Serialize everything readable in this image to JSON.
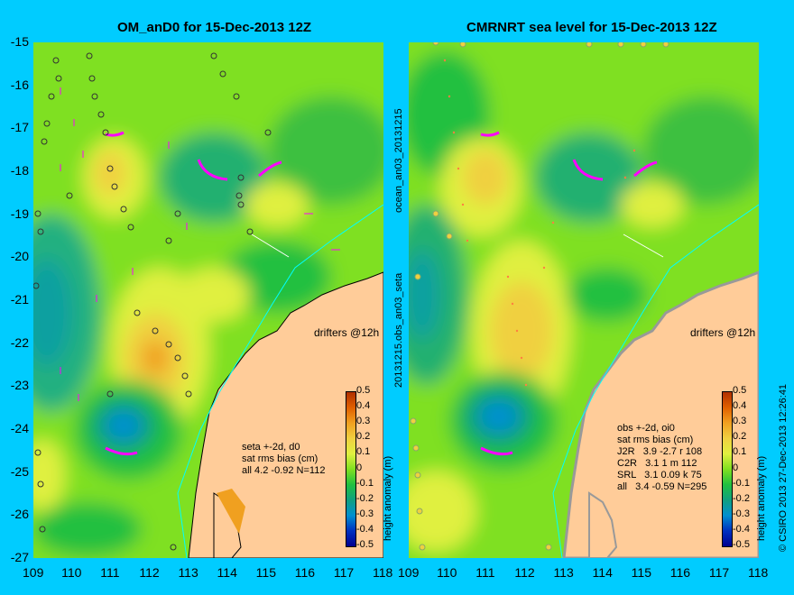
{
  "left_panel": {
    "title": "OM_anD0 for 15-Dec-2013 12Z",
    "drifters_label": "drifters @12h",
    "stats": [
      "seta +-2d, d0",
      "sat rms bias (cm)",
      "all 4.2 -0.92 N=112"
    ]
  },
  "right_panel": {
    "title": "CMRNRT sea level  for 15-Dec-2013 12Z",
    "drifters_label": "drifters @12h",
    "stats": [
      "obs +-2d, oi0",
      "sat rms bias (cm)",
      "J2R   3.9 -2.7 r 108",
      "C2R   3.1 1 m 112",
      "SRL   3.1 0.09 k 75",
      "all   3.4 -0.59 N=295"
    ]
  },
  "colorbar": {
    "label": "height anomaly (m)",
    "ticks": [
      "0.5",
      "0.4",
      "0.3",
      "0.2",
      "0.1",
      "0",
      "-0.1",
      "-0.2",
      "-0.3",
      "-0.4",
      "-0.5"
    ],
    "colors": [
      "#b03000",
      "#e06000",
      "#f0a020",
      "#f0d040",
      "#e0f040",
      "#80e020",
      "#20c040",
      "#10a080",
      "#0090d0",
      "#0030c0",
      "#000090"
    ]
  },
  "axes": {
    "y_ticks": [
      "-15",
      "-16",
      "-17",
      "-18",
      "-19",
      "-20",
      "-21",
      "-22",
      "-23",
      "-24",
      "-25",
      "-26",
      "-27"
    ],
    "x_ticks": [
      "109",
      "110",
      "111",
      "112",
      "113",
      "114",
      "115",
      "116",
      "117",
      "118"
    ]
  },
  "side_labels": {
    "middle_top": "ocean_an03_20131215",
    "middle_bottom": "20131215.obs_an03_seta",
    "right": "© CSIRO 2013  27-Dec-2013 12:26:41"
  },
  "colors": {
    "background": "#00ccff",
    "land": "#ffcc99",
    "drifter": "#ff00ff",
    "coast_current": "#00ffff"
  }
}
